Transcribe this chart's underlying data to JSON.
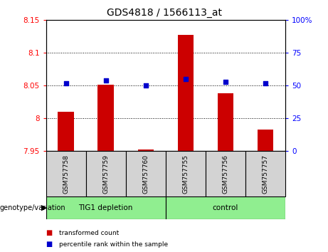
{
  "title": "GDS4818 / 1566113_at",
  "samples": [
    "GSM757758",
    "GSM757759",
    "GSM757760",
    "GSM757755",
    "GSM757756",
    "GSM757757"
  ],
  "bar_values": [
    8.01,
    8.052,
    7.953,
    8.128,
    8.038,
    7.983
  ],
  "dot_values": [
    52,
    54,
    50,
    55,
    53,
    52
  ],
  "bar_color": "#cc0000",
  "dot_color": "#0000cc",
  "ylim_left": [
    7.95,
    8.15
  ],
  "ylim_right": [
    0,
    100
  ],
  "yticks_left": [
    7.95,
    8.0,
    8.05,
    8.1,
    8.15
  ],
  "ytick_labels_left": [
    "7.95",
    "8",
    "8.05",
    "8.1",
    "8.15"
  ],
  "yticks_right": [
    0,
    25,
    50,
    75,
    100
  ],
  "ytick_labels_right": [
    "0",
    "25",
    "50",
    "75",
    "100%"
  ],
  "grid_values": [
    8.0,
    8.05,
    8.1
  ],
  "legend_items": [
    "transformed count",
    "percentile rank within the sample"
  ],
  "bar_base": 7.95,
  "bg_xtick": "#d3d3d3",
  "bg_group": "#90EE90",
  "group1_label": "TIG1 depletion",
  "group2_label": "control",
  "xlabel_text": "genotype/variation"
}
